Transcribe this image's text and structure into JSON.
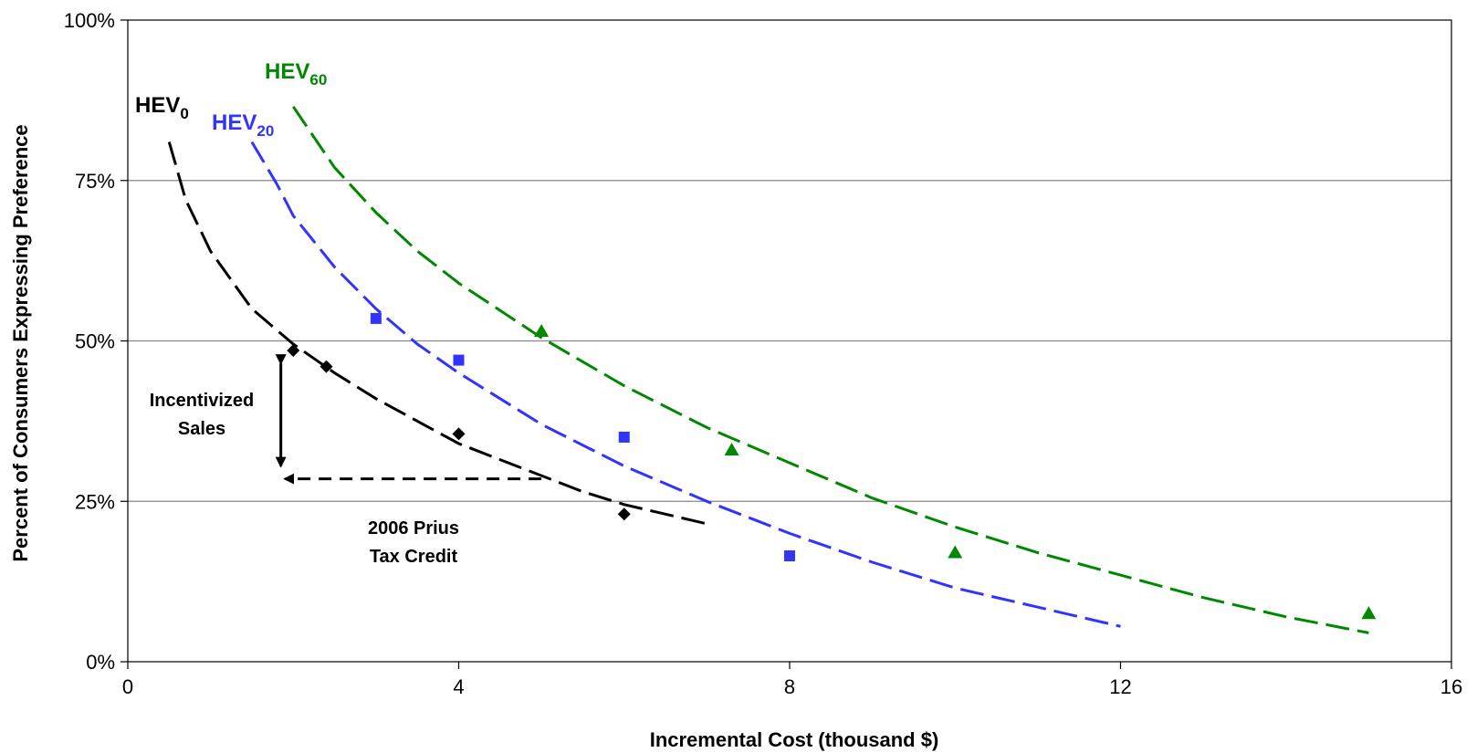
{
  "chart_data": {
    "type": "scatter",
    "title": "",
    "xlabel": "Incremental Cost (thousand $)",
    "ylabel": "Percent of Consumers Expressing Preference",
    "xlim": [
      0,
      16
    ],
    "ylim": [
      0,
      100
    ],
    "x_ticks": [
      0,
      4,
      8,
      12,
      16
    ],
    "x_tick_labels": [
      "0",
      "4",
      "8",
      "12",
      "16"
    ],
    "y_ticks": [
      0,
      25,
      50,
      75,
      100
    ],
    "y_tick_labels": [
      "0%",
      "25%",
      "50%",
      "75%",
      "100%"
    ],
    "grid": "horizontal",
    "legend": "none",
    "series": [
      {
        "name": "HEV",
        "name_sub": "0",
        "color": "#000000",
        "marker": "diamond",
        "points": [
          {
            "x": 2.0,
            "y": 48.5
          },
          {
            "x": 2.4,
            "y": 46
          },
          {
            "x": 4.0,
            "y": 35.5
          },
          {
            "x": 6.0,
            "y": 23
          }
        ],
        "trend": [
          [
            0.5,
            81
          ],
          [
            0.7,
            72
          ],
          [
            1.0,
            64
          ],
          [
            1.5,
            55
          ],
          [
            2.0,
            49.5
          ],
          [
            2.5,
            45
          ],
          [
            3.0,
            41
          ],
          [
            3.5,
            37.5
          ],
          [
            4.0,
            34
          ],
          [
            4.5,
            31.5
          ],
          [
            5.0,
            29
          ],
          [
            5.5,
            26.5
          ],
          [
            6.0,
            24.5
          ],
          [
            6.5,
            23
          ],
          [
            7.0,
            21.5
          ]
        ]
      },
      {
        "name": "HEV",
        "name_sub": "20",
        "color": "#3333ff",
        "marker": "square",
        "points": [
          {
            "x": 3.0,
            "y": 53.5
          },
          {
            "x": 4.0,
            "y": 47
          },
          {
            "x": 6.0,
            "y": 35
          },
          {
            "x": 8.0,
            "y": 16.5
          }
        ],
        "trend": [
          [
            1.5,
            81
          ],
          [
            1.8,
            74.5
          ],
          [
            2.0,
            69.5
          ],
          [
            2.5,
            61.5
          ],
          [
            3.0,
            55
          ],
          [
            3.5,
            49.5
          ],
          [
            4.0,
            45
          ],
          [
            5.0,
            37
          ],
          [
            6.0,
            30.5
          ],
          [
            7.0,
            25
          ],
          [
            8.0,
            20
          ],
          [
            9.0,
            15.5
          ],
          [
            10.0,
            11.5
          ],
          [
            11.0,
            8.5
          ],
          [
            12.0,
            5.5
          ]
        ]
      },
      {
        "name": "HEV",
        "name_sub": "60",
        "color": "#008800",
        "marker": "triangle",
        "points": [
          {
            "x": 5.0,
            "y": 51.5
          },
          {
            "x": 7.3,
            "y": 33
          },
          {
            "x": 10.0,
            "y": 17
          },
          {
            "x": 15.0,
            "y": 7.5
          }
        ],
        "trend": [
          [
            2.0,
            86.5
          ],
          [
            2.5,
            77
          ],
          [
            3.0,
            70
          ],
          [
            3.5,
            64
          ],
          [
            4.0,
            59
          ],
          [
            5.0,
            50.5
          ],
          [
            6.0,
            43
          ],
          [
            7.0,
            36.5
          ],
          [
            8.0,
            31
          ],
          [
            9.0,
            25.5
          ],
          [
            10.0,
            21
          ],
          [
            11.0,
            17
          ],
          [
            12.0,
            13.5
          ],
          [
            13.0,
            10
          ],
          [
            14.0,
            7
          ],
          [
            15.0,
            4.5
          ]
        ]
      }
    ],
    "annotations": {
      "incentivized_sales": [
        "Incentivized",
        "Sales"
      ],
      "tax_credit": [
        "2006 Prius",
        "Tax Credit"
      ],
      "vertical_arrow": {
        "x": 1.85,
        "y_top": 46.5,
        "y_bottom": 30.5
      },
      "horizontal_arrow": {
        "y": 28.5,
        "x_from": 5.0,
        "x_to": 1.9
      }
    }
  }
}
